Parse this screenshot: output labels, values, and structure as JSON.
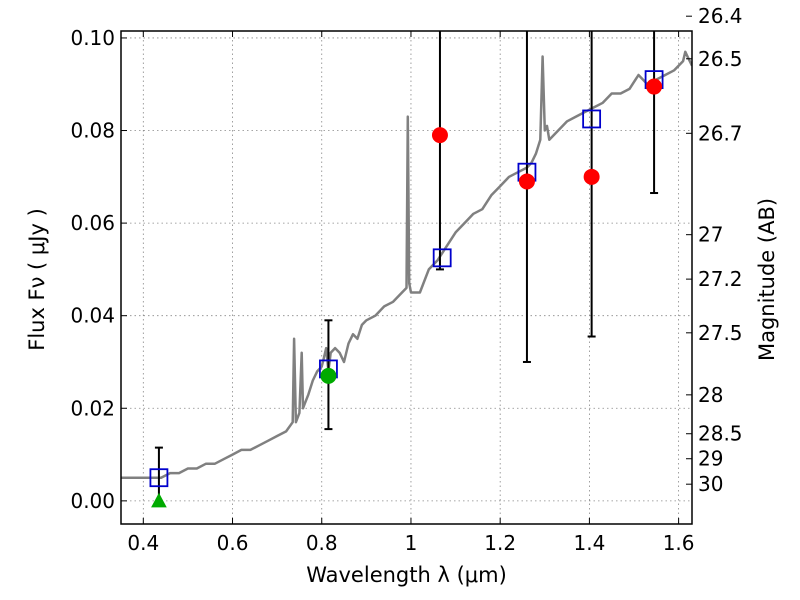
{
  "chart_data": {
    "type": "scatter",
    "title": "",
    "xlabel": "Wavelength  λ (μm)",
    "ylabel": "Flux  Fν ( μJy )",
    "y2label": "Magnitude (AB)",
    "xlim": [
      0.35,
      1.63
    ],
    "ylim": [
      -0.005,
      0.1015
    ],
    "xticks": [
      0.4,
      0.6,
      0.8,
      1.0,
      1.2,
      1.4,
      1.6
    ],
    "xtick_labels": [
      "0.4",
      "0.6",
      "0.8",
      "1",
      "1.2",
      "1.4",
      "1.6"
    ],
    "yticks": [
      0.0,
      0.02,
      0.04,
      0.06,
      0.08,
      0.1
    ],
    "ytick_labels": [
      "0.00",
      "0.02",
      "0.04",
      "0.06",
      "0.08",
      "0.10"
    ],
    "mag_ticks": [
      {
        "flux": 0.1047,
        "label": "26.4"
      },
      {
        "flux": 0.0955,
        "label": "26.5"
      },
      {
        "flux": 0.0794,
        "label": "26.7"
      },
      {
        "flux": 0.0575,
        "label": "27"
      },
      {
        "flux": 0.0479,
        "label": "27.2"
      },
      {
        "flux": 0.0363,
        "label": "27.5"
      },
      {
        "flux": 0.0229,
        "label": "28"
      },
      {
        "flux": 0.0145,
        "label": "28.5"
      },
      {
        "flux": 0.0091,
        "label": "29"
      },
      {
        "flux": 0.0036,
        "label": "30"
      }
    ],
    "grid": true,
    "colors": {
      "spectrum": "#808080",
      "model": "#0000cc",
      "detections": "#ff0000",
      "detections_green": "#00aa00",
      "errorbars": "#000000",
      "grid": "#888888"
    },
    "spectrum": {
      "x": [
        0.35,
        0.38,
        0.4,
        0.42,
        0.44,
        0.46,
        0.48,
        0.5,
        0.52,
        0.54,
        0.56,
        0.58,
        0.6,
        0.62,
        0.64,
        0.66,
        0.68,
        0.7,
        0.72,
        0.735,
        0.738,
        0.742,
        0.75,
        0.755,
        0.758,
        0.762,
        0.77,
        0.78,
        0.79,
        0.8,
        0.805,
        0.81,
        0.815,
        0.82,
        0.83,
        0.84,
        0.85,
        0.86,
        0.87,
        0.88,
        0.89,
        0.9,
        0.92,
        0.94,
        0.96,
        0.98,
        0.99,
        0.993,
        0.996,
        1.0,
        1.02,
        1.04,
        1.06,
        1.08,
        1.1,
        1.12,
        1.14,
        1.16,
        1.18,
        1.2,
        1.22,
        1.24,
        1.26,
        1.27,
        1.28,
        1.29,
        1.295,
        1.3,
        1.305,
        1.31,
        1.33,
        1.35,
        1.37,
        1.39,
        1.41,
        1.43,
        1.45,
        1.47,
        1.49,
        1.51,
        1.53,
        1.55,
        1.57,
        1.59,
        1.61,
        1.615,
        1.62,
        1.63
      ],
      "y": [
        0.005,
        0.005,
        0.005,
        0.005,
        0.005,
        0.006,
        0.006,
        0.007,
        0.007,
        0.008,
        0.008,
        0.009,
        0.01,
        0.011,
        0.011,
        0.012,
        0.013,
        0.014,
        0.015,
        0.017,
        0.035,
        0.017,
        0.019,
        0.032,
        0.02,
        0.021,
        0.023,
        0.026,
        0.028,
        0.029,
        0.031,
        0.033,
        0.028,
        0.032,
        0.033,
        0.032,
        0.03,
        0.034,
        0.036,
        0.035,
        0.038,
        0.039,
        0.04,
        0.042,
        0.043,
        0.045,
        0.046,
        0.083,
        0.047,
        0.045,
        0.045,
        0.05,
        0.052,
        0.055,
        0.058,
        0.06,
        0.062,
        0.063,
        0.066,
        0.068,
        0.07,
        0.071,
        0.072,
        0.073,
        0.075,
        0.078,
        0.096,
        0.08,
        0.081,
        0.078,
        0.08,
        0.082,
        0.083,
        0.084,
        0.085,
        0.086,
        0.088,
        0.088,
        0.089,
        0.092,
        0.09,
        0.091,
        0.092,
        0.093,
        0.095,
        0.097,
        0.096,
        0.094
      ]
    },
    "model_points": {
      "x": [
        0.435,
        0.815,
        1.07,
        1.26,
        1.405,
        1.545
      ],
      "y": [
        0.005,
        0.0285,
        0.0525,
        0.071,
        0.0825,
        0.091
      ]
    },
    "error_bars": [
      {
        "x": 0.435,
        "low": -0.001,
        "high": 0.0115
      },
      {
        "x": 0.815,
        "low": 0.0155,
        "high": 0.039
      },
      {
        "x": 1.065,
        "low": 0.05,
        "high": 0.102
      },
      {
        "x": 1.26,
        "low": 0.03,
        "high": 0.102
      },
      {
        "x": 1.405,
        "low": 0.0355,
        "high": 0.102
      },
      {
        "x": 1.545,
        "low": 0.0665,
        "high": 0.102
      }
    ],
    "detections": {
      "x": [
        1.065,
        1.26,
        1.405,
        1.545
      ],
      "y": [
        0.079,
        0.069,
        0.07,
        0.0895
      ]
    },
    "detections_green": {
      "x": [
        0.815
      ],
      "y": [
        0.027
      ]
    },
    "upper_limits": {
      "x": [
        0.435
      ],
      "y": [
        0.0
      ]
    }
  }
}
